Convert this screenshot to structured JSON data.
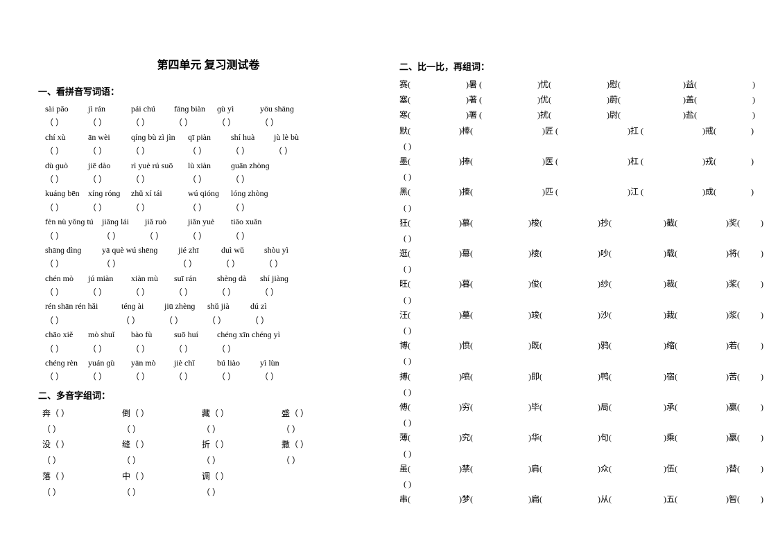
{
  "title": "第四单元 复习测试卷",
  "sections": {
    "s1": "一、看拼音写词语：",
    "s2": "二、多音字组词：",
    "s3": "二、比一比，再组词："
  },
  "pinyin_rows": [
    [
      "sài pǎo",
      "jì rán",
      "pái chú",
      "fānɡ biàn",
      "ɡù yì",
      "yōu shānɡ"
    ],
    [
      "chí xù",
      "ān wèi",
      "qínɡ bù zì jìn",
      "qī piàn",
      "shí huà",
      "jù lè bù"
    ],
    [
      "dù ɡuò",
      "jiē dào",
      "rì yuè rú suō",
      "lù xiàn",
      "ɡuān zhònɡ",
      ""
    ],
    [
      "kuánɡ bēn",
      "xínɡ rónɡ",
      "zhǔ xí tái",
      "wú qiónɡ",
      "lónɡ zhònɡ",
      ""
    ],
    [
      "fèn nù yǒnɡ tú",
      "jiānɡ lái",
      "jiǎ ruò",
      "jiǎn yuè",
      "tiāo xuǎn",
      ""
    ],
    [
      "shānɡ dìnɡ",
      "yā què wú shēnɡ",
      "jié zhī",
      "duì wǔ",
      "shòu yì",
      ""
    ],
    [
      "chén mò",
      "jú miàn",
      "xiàn mù",
      "suī rán",
      "shènɡ dà",
      "shí jiànɡ"
    ],
    [
      "rén shān rén hǎi",
      "ténɡ ài",
      "jiū zhènɡ",
      "shǔ jià",
      "dú zì",
      ""
    ],
    [
      "chāo xiě",
      "mò shuǐ",
      "bào fù",
      "suō huí",
      "chénɡ xīn chénɡ yì",
      ""
    ],
    [
      "chénɡ rèn",
      "yuán ɡù",
      "yān mò",
      "jiè chǐ",
      "bú liào",
      "yì lùn"
    ]
  ],
  "blank_open": "（",
  "blank_close": "）",
  "paren_open": "(",
  "paren_close": ")",
  "dyz_rows": [
    [
      "奔",
      "倒",
      "藏",
      "盛"
    ],
    [
      "没",
      "缝",
      "折",
      "撒"
    ],
    [
      "落",
      "中",
      "调",
      ""
    ]
  ],
  "cmp_rows": [
    [
      [
        "赛",
        "80"
      ],
      [
        "暑 ",
        "80"
      ],
      [
        "忧",
        "80"
      ],
      [
        "慰",
        "90"
      ],
      [
        "益",
        "80"
      ]
    ],
    [
      [
        "塞",
        "80"
      ],
      [
        "著 ",
        "80"
      ],
      [
        "优",
        "80"
      ],
      [
        "蔚",
        "90"
      ],
      [
        "盖",
        "80"
      ]
    ],
    [
      [
        "寒",
        "80"
      ],
      [
        "署 ",
        "80"
      ],
      [
        "扰",
        "80"
      ],
      [
        "尉",
        "90"
      ],
      [
        "盐",
        "80"
      ]
    ],
    [
      [
        "默",
        "70"
      ],
      [
        " 棒",
        "100"
      ],
      [
        " 匠 ",
        "100"
      ],
      [
        " 扛 ",
        "85"
      ],
      [
        " 戒",
        "50"
      ]
    ],
    [
      [
        "墨",
        "70"
      ],
      [
        " 捧",
        "100"
      ],
      [
        " 医 ",
        "100"
      ],
      [
        " 杠 ",
        "85"
      ],
      [
        " 戎",
        "50"
      ]
    ],
    [
      [
        "黑",
        "70"
      ],
      [
        " 揍",
        "100"
      ],
      [
        " 匹 ",
        "100"
      ],
      [
        " 江 ",
        "85"
      ],
      [
        " 成",
        "50"
      ]
    ],
    [
      [
        "狂",
        "70"
      ],
      [
        " 慕",
        "80"
      ],
      [
        " 梭",
        "80"
      ],
      [
        " 抄",
        "75"
      ],
      [
        " 截",
        "70"
      ],
      [
        " 奖",
        "30"
      ]
    ],
    [
      [
        "逛",
        "70"
      ],
      [
        " 幕",
        "80"
      ],
      [
        " 棱",
        "80"
      ],
      [
        " 吵",
        "75"
      ],
      [
        " 载",
        "70"
      ],
      [
        " 将",
        "30"
      ]
    ],
    [
      [
        "旺",
        "70"
      ],
      [
        " 暮",
        "80"
      ],
      [
        " 俊",
        "80"
      ],
      [
        " 纱",
        "75"
      ],
      [
        " 裁",
        "70"
      ],
      [
        " 桨",
        "30"
      ]
    ],
    [
      [
        "汪",
        "70"
      ],
      [
        " 墓",
        "80"
      ],
      [
        " 竣",
        "80"
      ],
      [
        " 沙",
        "75"
      ],
      [
        " 栽",
        "70"
      ],
      [
        " 浆",
        "30"
      ]
    ],
    [
      [
        "博",
        "70"
      ],
      [
        " 愤",
        "80"
      ],
      [
        " 既",
        "80"
      ],
      [
        " 鸦",
        "75"
      ],
      [
        " 缩",
        "70"
      ],
      [
        " 若",
        "30"
      ]
    ],
    [
      [
        "搏",
        "70"
      ],
      [
        " 喷",
        "80"
      ],
      [
        " 即",
        "80"
      ],
      [
        " 鸭",
        "75"
      ],
      [
        " 宿",
        "70"
      ],
      [
        " 苦",
        "30"
      ]
    ],
    [
      [
        "傅",
        "70"
      ],
      [
        " 穷",
        "80"
      ],
      [
        " 毕",
        "80"
      ],
      [
        " 局",
        "75"
      ],
      [
        " 承",
        "70"
      ],
      [
        " 赢",
        "30"
      ]
    ],
    [
      [
        "薄",
        "70"
      ],
      [
        " 究",
        "80"
      ],
      [
        " 华",
        "80"
      ],
      [
        " 句",
        "75"
      ],
      [
        " 乘",
        "70"
      ],
      [
        " 羸",
        "30"
      ]
    ],
    [
      [
        "虽",
        "70"
      ],
      [
        " 禁",
        "80"
      ],
      [
        " 肩",
        "80"
      ],
      [
        " 众",
        "75"
      ],
      [
        " 伍",
        "70"
      ],
      [
        " 替",
        "30"
      ]
    ],
    [
      [
        "串",
        "70"
      ],
      [
        " 梦",
        "80"
      ],
      [
        " 扁",
        "80"
      ],
      [
        " 从",
        "75"
      ],
      [
        " 五",
        "70"
      ],
      [
        " 智",
        "30"
      ]
    ]
  ],
  "cmp_extra_rows_has_tail": [
    false,
    false,
    false,
    true,
    true,
    true,
    true,
    true,
    true,
    true,
    true,
    true,
    true,
    true,
    true,
    false
  ]
}
